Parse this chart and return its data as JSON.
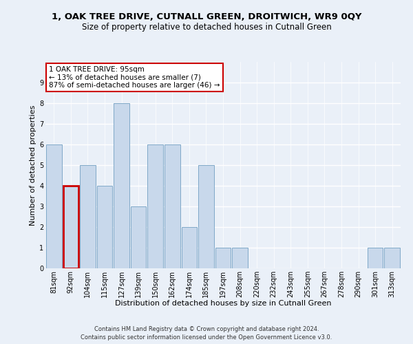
{
  "title1": "1, OAK TREE DRIVE, CUTNALL GREEN, DROITWICH, WR9 0QY",
  "title2": "Size of property relative to detached houses in Cutnall Green",
  "xlabel": "Distribution of detached houses by size in Cutnall Green",
  "ylabel": "Number of detached properties",
  "categories": [
    "81sqm",
    "92sqm",
    "104sqm",
    "115sqm",
    "127sqm",
    "139sqm",
    "150sqm",
    "162sqm",
    "174sqm",
    "185sqm",
    "197sqm",
    "208sqm",
    "220sqm",
    "232sqm",
    "243sqm",
    "255sqm",
    "267sqm",
    "278sqm",
    "290sqm",
    "301sqm",
    "313sqm"
  ],
  "values": [
    6,
    4,
    5,
    4,
    8,
    3,
    6,
    6,
    2,
    5,
    1,
    1,
    0,
    0,
    0,
    0,
    0,
    0,
    0,
    1,
    1
  ],
  "bar_color": "#c8d8eb",
  "bar_edge_color": "#7fa8c8",
  "highlight_bar_index": 1,
  "highlight_edge_color": "#cc0000",
  "annotation_text": "1 OAK TREE DRIVE: 95sqm\n← 13% of detached houses are smaller (7)\n87% of semi-detached houses are larger (46) →",
  "annotation_box_color": "#ffffff",
  "annotation_box_edge_color": "#cc0000",
  "ylim": [
    0,
    10
  ],
  "yticks": [
    0,
    1,
    2,
    3,
    4,
    5,
    6,
    7,
    8,
    9
  ],
  "bg_color": "#eaf0f8",
  "plot_bg_color": "#eaf0f8",
  "grid_color": "#ffffff",
  "title_fontsize": 9.5,
  "subtitle_fontsize": 8.5,
  "axis_label_fontsize": 8,
  "tick_fontsize": 7,
  "annotation_fontsize": 7.5,
  "footnote_fontsize": 6,
  "footnote1": "Contains HM Land Registry data © Crown copyright and database right 2024.",
  "footnote2": "Contains public sector information licensed under the Open Government Licence v3.0."
}
